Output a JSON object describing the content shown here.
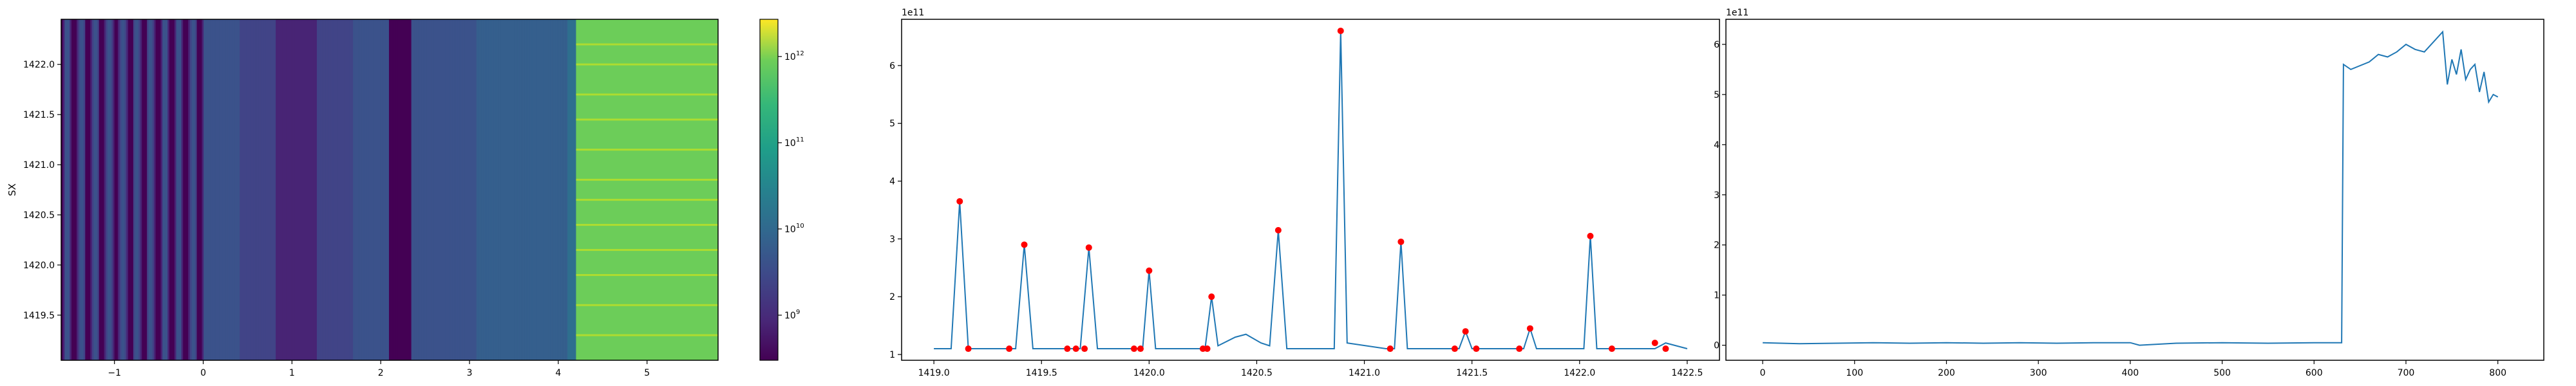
{
  "chart_data": [
    {
      "type": "heatmap",
      "title": "",
      "xlabel": "",
      "ylabel": "SX",
      "xlim": [
        -1.6,
        5.8
      ],
      "ylim": [
        1419.05,
        1422.45
      ],
      "x_ticks": [
        -1,
        0,
        1,
        2,
        3,
        4,
        5
      ],
      "y_ticks": [
        1419.5,
        1420.0,
        1420.5,
        1421.0,
        1421.5,
        1422.0
      ],
      "colorbar": {
        "scale": "log",
        "colormap": "viridis",
        "range": [
          300000000,
          2700000000000
        ],
        "ticks": [
          {
            "value": 1000000000,
            "label": "10",
            "exp": "9"
          },
          {
            "value": 10000000000,
            "label": "10",
            "exp": "10"
          },
          {
            "value": 100000000000,
            "label": "10",
            "exp": "11"
          },
          {
            "value": 1000000000000,
            "label": "10",
            "exp": "12"
          }
        ]
      },
      "bright_region_x": 4.2,
      "stripe_y": [
        1419.3,
        1419.6,
        1419.9,
        1420.15,
        1420.4,
        1420.65,
        1420.85,
        1421.15,
        1421.45,
        1421.7,
        1422.0,
        1422.2
      ]
    },
    {
      "type": "line",
      "title": "",
      "offset_label": "1e11",
      "xlim": [
        1418.85,
        1422.65
      ],
      "ylim": [
        0.9,
        6.8
      ],
      "x_ticks": [
        1419.0,
        1419.5,
        1420.0,
        1420.5,
        1421.0,
        1421.5,
        1422.0,
        1422.5
      ],
      "x_tick_labels": [
        "1419.0",
        "1419.5",
        "1420.0",
        "1420.5",
        "1421.0",
        "1421.5",
        "1422.0",
        "1422.5"
      ],
      "y_ticks": [
        1,
        2,
        3,
        4,
        5,
        6
      ],
      "line_color": "#1f77b4",
      "marker_color": "#ff0000",
      "x": [
        1419.0,
        1419.08,
        1419.12,
        1419.16,
        1419.3,
        1419.38,
        1419.42,
        1419.46,
        1419.6,
        1419.68,
        1419.72,
        1419.76,
        1419.92,
        1419.97,
        1420.0,
        1420.03,
        1420.2,
        1420.26,
        1420.29,
        1420.32,
        1420.4,
        1420.45,
        1420.52,
        1420.56,
        1420.6,
        1420.64,
        1420.82,
        1420.86,
        1420.89,
        1420.92,
        1421.1,
        1421.14,
        1421.17,
        1421.2,
        1421.38,
        1421.44,
        1421.47,
        1421.5,
        1421.7,
        1421.74,
        1421.77,
        1421.8,
        1421.98,
        1422.02,
        1422.05,
        1422.08,
        1422.3,
        1422.35,
        1422.4,
        1422.5
      ],
      "y": [
        1.1,
        1.1,
        3.65,
        1.1,
        1.1,
        1.1,
        2.9,
        1.1,
        1.1,
        1.1,
        2.85,
        1.1,
        1.1,
        1.1,
        2.45,
        1.1,
        1.1,
        1.1,
        2.0,
        1.15,
        1.3,
        1.35,
        1.2,
        1.15,
        3.15,
        1.1,
        1.1,
        1.1,
        6.6,
        1.2,
        1.1,
        1.1,
        2.95,
        1.1,
        1.1,
        1.1,
        1.4,
        1.1,
        1.1,
        1.1,
        1.45,
        1.1,
        1.1,
        1.1,
        3.05,
        1.1,
        1.1,
        1.1,
        1.2,
        1.1
      ],
      "markers": [
        {
          "x": 1419.12,
          "y": 3.65
        },
        {
          "x": 1419.16,
          "y": 1.1
        },
        {
          "x": 1419.35,
          "y": 1.1
        },
        {
          "x": 1419.42,
          "y": 2.9
        },
        {
          "x": 1419.62,
          "y": 1.1
        },
        {
          "x": 1419.66,
          "y": 1.1
        },
        {
          "x": 1419.7,
          "y": 1.1
        },
        {
          "x": 1419.72,
          "y": 2.85
        },
        {
          "x": 1419.93,
          "y": 1.1
        },
        {
          "x": 1419.96,
          "y": 1.1
        },
        {
          "x": 1420.0,
          "y": 2.45
        },
        {
          "x": 1420.25,
          "y": 1.1
        },
        {
          "x": 1420.27,
          "y": 1.1
        },
        {
          "x": 1420.29,
          "y": 2.0
        },
        {
          "x": 1420.6,
          "y": 3.15
        },
        {
          "x": 1420.89,
          "y": 6.6
        },
        {
          "x": 1421.12,
          "y": 1.1
        },
        {
          "x": 1421.17,
          "y": 2.95
        },
        {
          "x": 1421.42,
          "y": 1.1
        },
        {
          "x": 1421.47,
          "y": 1.4
        },
        {
          "x": 1421.52,
          "y": 1.1
        },
        {
          "x": 1421.72,
          "y": 1.1
        },
        {
          "x": 1421.77,
          "y": 1.45
        },
        {
          "x": 1422.05,
          "y": 3.05
        },
        {
          "x": 1422.15,
          "y": 1.1
        },
        {
          "x": 1422.35,
          "y": 1.2
        },
        {
          "x": 1422.4,
          "y": 1.1
        }
      ]
    },
    {
      "type": "line",
      "title": "",
      "offset_label": "1e11",
      "xlim": [
        -40,
        850
      ],
      "ylim": [
        -0.3,
        6.5
      ],
      "x_ticks": [
        0,
        100,
        200,
        300,
        400,
        500,
        600,
        700,
        800
      ],
      "y_ticks": [
        0,
        1,
        2,
        3,
        4,
        5,
        6
      ],
      "line_color": "#1f77b4",
      "x": [
        0,
        40,
        80,
        120,
        160,
        200,
        240,
        280,
        320,
        360,
        400,
        410,
        450,
        500,
        550,
        600,
        630,
        632,
        640,
        660,
        670,
        680,
        690,
        700,
        710,
        720,
        730,
        740,
        745,
        750,
        755,
        760,
        765,
        770,
        775,
        780,
        785,
        790,
        795,
        800
      ],
      "y": [
        0.05,
        0.03,
        0.04,
        0.05,
        0.04,
        0.05,
        0.04,
        0.05,
        0.04,
        0.05,
        0.05,
        0.0,
        0.04,
        0.05,
        0.04,
        0.05,
        0.05,
        5.6,
        5.5,
        5.65,
        5.8,
        5.75,
        5.85,
        6.0,
        5.9,
        5.85,
        6.05,
        6.25,
        5.2,
        5.7,
        5.4,
        5.9,
        5.3,
        5.5,
        5.6,
        5.05,
        5.45,
        4.85,
        5.0,
        4.95
      ]
    }
  ]
}
